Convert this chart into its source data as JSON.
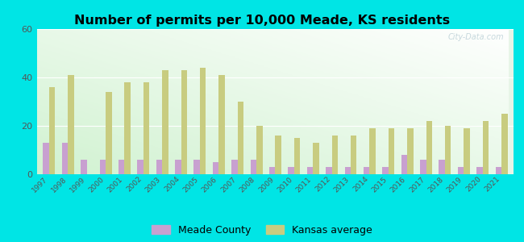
{
  "title": "Number of permits per 10,000 Meade, KS residents",
  "years": [
    1997,
    1998,
    1999,
    2000,
    2001,
    2002,
    2003,
    2004,
    2005,
    2006,
    2007,
    2008,
    2009,
    2010,
    2011,
    2012,
    2013,
    2014,
    2015,
    2016,
    2017,
    2018,
    2019,
    2020,
    2021
  ],
  "meade_county": [
    13,
    13,
    6,
    6,
    6,
    6,
    6,
    6,
    6,
    5,
    6,
    6,
    3,
    3,
    3,
    3,
    3,
    3,
    3,
    8,
    6,
    6,
    3,
    3,
    3
  ],
  "kansas_avg": [
    36,
    41,
    0,
    34,
    38,
    38,
    43,
    43,
    44,
    41,
    30,
    20,
    16,
    15,
    13,
    16,
    16,
    19,
    19,
    19,
    22,
    20,
    19,
    22,
    25
  ],
  "meade_color": "#c8a0d0",
  "kansas_color": "#c8cc80",
  "bg_outer": "#00e5e5",
  "bg_plot_top": "#f5fff5",
  "bg_plot_bottom": "#c8e8c8",
  "ylim": [
    0,
    60
  ],
  "yticks": [
    0,
    20,
    40,
    60
  ],
  "title_fontsize": 11.5,
  "bar_width": 0.32,
  "legend_meade": "Meade County",
  "legend_kansas": "Kansas average"
}
